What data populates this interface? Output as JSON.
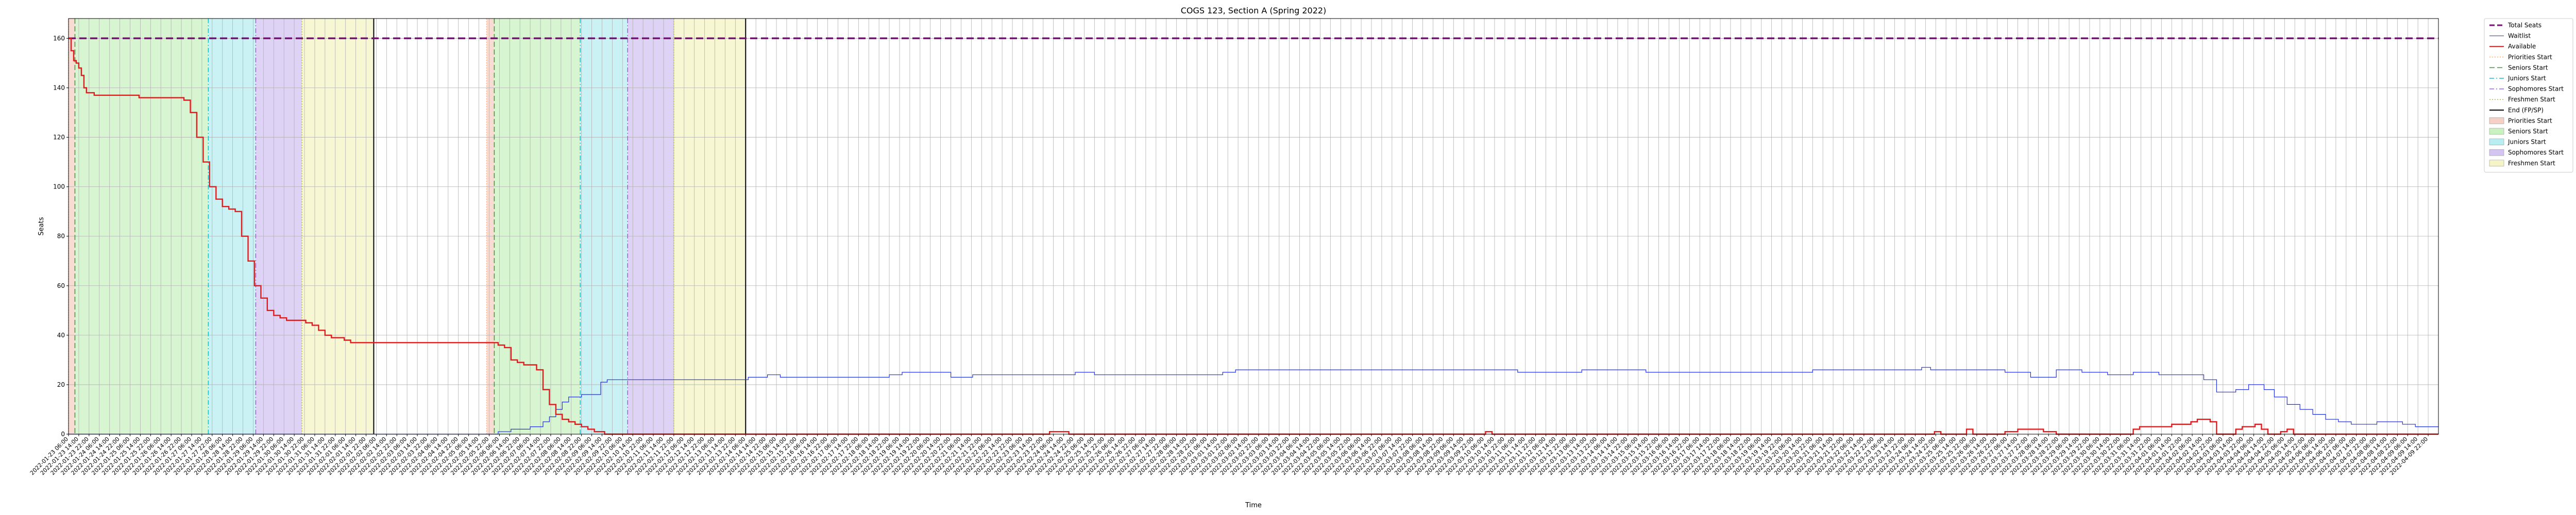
{
  "chart_data": {
    "type": "line",
    "title": "COGS 123, Section A (Spring 2022)",
    "xlabel": "Time",
    "ylabel": "Seats",
    "ylim": [
      0,
      168
    ],
    "y_ticks": [
      0,
      20,
      40,
      60,
      80,
      100,
      120,
      140,
      160
    ],
    "grid": true,
    "legend_placement": "outside-top-right",
    "x_range_hours": [
      0,
      1848
    ],
    "x_tick_first": "2022-01-23T06:00",
    "x_tick_step_hours": 8,
    "x_tick_count": 231,
    "series": [
      {
        "name": "Total Seats",
        "color": "#7b0f7a",
        "points": [
          [
            0,
            160
          ],
          [
            1848,
            160
          ]
        ]
      },
      {
        "name": "Waitlist",
        "color": "#1f2fe0",
        "points": [
          [
            0,
            0
          ],
          [
            330,
            0
          ],
          [
            335,
            1
          ],
          [
            345,
            2
          ],
          [
            360,
            3
          ],
          [
            370,
            5
          ],
          [
            375,
            7
          ],
          [
            380,
            10
          ],
          [
            385,
            13
          ],
          [
            390,
            15
          ],
          [
            400,
            16
          ],
          [
            410,
            16
          ],
          [
            415,
            21
          ],
          [
            420,
            22
          ],
          [
            426,
            22
          ],
          [
            440,
            22
          ],
          [
            490,
            22
          ],
          [
            520,
            22
          ],
          [
            530,
            23
          ],
          [
            545,
            24
          ],
          [
            555,
            23
          ],
          [
            600,
            23
          ],
          [
            620,
            23
          ],
          [
            640,
            24
          ],
          [
            650,
            25
          ],
          [
            680,
            25
          ],
          [
            688,
            23
          ],
          [
            700,
            23
          ],
          [
            705,
            24
          ],
          [
            740,
            24
          ],
          [
            780,
            24
          ],
          [
            785,
            25
          ],
          [
            795,
            25
          ],
          [
            800,
            24
          ],
          [
            830,
            24
          ],
          [
            890,
            24
          ],
          [
            900,
            25
          ],
          [
            910,
            26
          ],
          [
            960,
            26
          ],
          [
            1050,
            26
          ],
          [
            1100,
            26
          ],
          [
            1130,
            25
          ],
          [
            1160,
            25
          ],
          [
            1180,
            26
          ],
          [
            1200,
            26
          ],
          [
            1230,
            25
          ],
          [
            1280,
            25
          ],
          [
            1330,
            25
          ],
          [
            1360,
            26
          ],
          [
            1400,
            26
          ],
          [
            1440,
            26
          ],
          [
            1445,
            27
          ],
          [
            1452,
            26
          ],
          [
            1480,
            26
          ],
          [
            1510,
            25
          ],
          [
            1530,
            23
          ],
          [
            1550,
            26
          ],
          [
            1570,
            25
          ],
          [
            1590,
            24
          ],
          [
            1610,
            25
          ],
          [
            1630,
            24
          ],
          [
            1655,
            24
          ],
          [
            1665,
            22
          ],
          [
            1675,
            17
          ],
          [
            1690,
            18
          ],
          [
            1700,
            20
          ],
          [
            1712,
            18
          ],
          [
            1720,
            15
          ],
          [
            1730,
            12
          ],
          [
            1740,
            10
          ],
          [
            1750,
            8
          ],
          [
            1760,
            6
          ],
          [
            1770,
            5
          ],
          [
            1780,
            4
          ],
          [
            1800,
            5
          ],
          [
            1810,
            5
          ],
          [
            1820,
            4
          ],
          [
            1830,
            3
          ],
          [
            1848,
            3
          ]
        ]
      },
      {
        "name": "Available",
        "color": "#e31a1c",
        "points": [
          [
            0,
            160
          ],
          [
            2,
            155
          ],
          [
            4,
            151
          ],
          [
            6,
            150
          ],
          [
            8,
            148
          ],
          [
            10,
            145
          ],
          [
            12,
            140
          ],
          [
            14,
            138
          ],
          [
            20,
            137
          ],
          [
            30,
            137
          ],
          [
            40,
            137
          ],
          [
            50,
            137
          ],
          [
            55,
            136
          ],
          [
            60,
            136
          ],
          [
            70,
            136
          ],
          [
            80,
            136
          ],
          [
            90,
            135
          ],
          [
            95,
            130
          ],
          [
            100,
            120
          ],
          [
            105,
            110
          ],
          [
            110,
            100
          ],
          [
            115,
            95
          ],
          [
            120,
            92
          ],
          [
            125,
            91
          ],
          [
            130,
            90
          ],
          [
            135,
            80
          ],
          [
            140,
            70
          ],
          [
            145,
            60
          ],
          [
            150,
            55
          ],
          [
            155,
            50
          ],
          [
            160,
            48
          ],
          [
            165,
            47
          ],
          [
            170,
            46
          ],
          [
            175,
            46
          ],
          [
            180,
            46
          ],
          [
            185,
            45
          ],
          [
            190,
            44
          ],
          [
            195,
            42
          ],
          [
            200,
            40
          ],
          [
            205,
            39
          ],
          [
            210,
            39
          ],
          [
            215,
            38
          ],
          [
            220,
            37
          ],
          [
            230,
            37
          ],
          [
            250,
            37
          ],
          [
            290,
            37
          ],
          [
            330,
            37
          ],
          [
            335,
            36
          ],
          [
            340,
            35
          ],
          [
            345,
            30
          ],
          [
            350,
            29
          ],
          [
            355,
            28
          ],
          [
            360,
            28
          ],
          [
            365,
            26
          ],
          [
            370,
            18
          ],
          [
            375,
            12
          ],
          [
            380,
            8
          ],
          [
            385,
            6
          ],
          [
            390,
            5
          ],
          [
            395,
            4
          ],
          [
            400,
            3
          ],
          [
            405,
            2
          ],
          [
            410,
            1
          ],
          [
            415,
            1
          ],
          [
            418,
            0
          ],
          [
            440,
            0
          ],
          [
            520,
            0
          ],
          [
            600,
            0
          ],
          [
            760,
            0
          ],
          [
            765,
            1
          ],
          [
            775,
            1
          ],
          [
            780,
            0
          ],
          [
            1100,
            0
          ],
          [
            1105,
            1
          ],
          [
            1110,
            0
          ],
          [
            1450,
            0
          ],
          [
            1455,
            1
          ],
          [
            1460,
            0
          ],
          [
            1475,
            0
          ],
          [
            1480,
            2
          ],
          [
            1485,
            0
          ],
          [
            1500,
            0
          ],
          [
            1510,
            1
          ],
          [
            1520,
            2
          ],
          [
            1530,
            2
          ],
          [
            1540,
            1
          ],
          [
            1550,
            0
          ],
          [
            1600,
            0
          ],
          [
            1610,
            2
          ],
          [
            1615,
            3
          ],
          [
            1620,
            3
          ],
          [
            1630,
            3
          ],
          [
            1640,
            4
          ],
          [
            1650,
            4
          ],
          [
            1655,
            5
          ],
          [
            1660,
            6
          ],
          [
            1665,
            6
          ],
          [
            1670,
            5
          ],
          [
            1675,
            0
          ],
          [
            1685,
            0
          ],
          [
            1690,
            2
          ],
          [
            1695,
            3
          ],
          [
            1700,
            3
          ],
          [
            1705,
            4
          ],
          [
            1710,
            2
          ],
          [
            1715,
            0
          ],
          [
            1720,
            0
          ],
          [
            1725,
            1
          ],
          [
            1730,
            2
          ],
          [
            1735,
            0
          ],
          [
            1848,
            0
          ]
        ]
      }
    ],
    "vertical_lines": [
      {
        "name": "Priorities Start",
        "style": "dotted",
        "color": "#ffb07a",
        "x": [
          0,
          326
        ]
      },
      {
        "name": "Seniors Start",
        "style": "dashed",
        "color": "#2ca02c",
        "x": [
          5,
          332
        ]
      },
      {
        "name": "Juniors Start",
        "style": "dashdot",
        "color": "#17becf",
        "x": [
          109,
          399
        ]
      },
      {
        "name": "Sophomores Start",
        "style": "dashdot",
        "color": "#9467bd",
        "x": [
          146,
          436
        ]
      },
      {
        "name": "Freshmen Start",
        "style": "dotted",
        "color": "#bcbd22",
        "x": [
          182,
          472
        ]
      },
      {
        "name": "End (FP/SP)",
        "style": "solid",
        "color": "#000000",
        "x": [
          238,
          528
        ]
      }
    ],
    "shaded_regions": [
      {
        "name": "Priorities Start",
        "color": "#f6d0c4",
        "ranges": [
          [
            0,
            5
          ],
          [
            326,
            332
          ]
        ]
      },
      {
        "name": "Seniors Start",
        "color": "#c9f2c0",
        "ranges": [
          [
            5,
            109
          ],
          [
            332,
            399
          ]
        ]
      },
      {
        "name": "Juniors Start",
        "color": "#b8eef2",
        "ranges": [
          [
            109,
            146
          ],
          [
            399,
            436
          ]
        ]
      },
      {
        "name": "Sophomores Start",
        "color": "#d3c4f1",
        "ranges": [
          [
            146,
            182
          ],
          [
            436,
            472
          ]
        ]
      },
      {
        "name": "Freshmen Start",
        "color": "#f4f4c6",
        "ranges": [
          [
            182,
            238
          ],
          [
            472,
            528
          ]
        ]
      }
    ],
    "legend": [
      {
        "label": "Total Seats",
        "kind": "line",
        "style": "dashed",
        "color": "#7b0f7a",
        "width": 3
      },
      {
        "label": "Waitlist",
        "kind": "line",
        "style": "solid",
        "color": "#1f2fe0",
        "width": 1
      },
      {
        "label": "Available",
        "kind": "line",
        "style": "solid",
        "color": "#e31a1c",
        "width": 2
      },
      {
        "label": "Priorities Start",
        "kind": "line",
        "style": "dotted",
        "color": "#ffb07a",
        "width": 1.5
      },
      {
        "label": "Seniors Start",
        "kind": "line",
        "style": "dashed",
        "color": "#2ca02c",
        "width": 1.5
      },
      {
        "label": "Juniors Start",
        "kind": "line",
        "style": "dashdot",
        "color": "#17becf",
        "width": 1.5
      },
      {
        "label": "Sophomores Start",
        "kind": "line",
        "style": "dashdot",
        "color": "#9467bd",
        "width": 1.5
      },
      {
        "label": "Freshmen Start",
        "kind": "line",
        "style": "dotted",
        "color": "#bcbd22",
        "width": 1.5
      },
      {
        "label": "End (FP/SP)",
        "kind": "line",
        "style": "solid",
        "color": "#000000",
        "width": 2
      },
      {
        "label": "Priorities Start",
        "kind": "patch",
        "color": "#f6d0c4"
      },
      {
        "label": "Seniors Start",
        "kind": "patch",
        "color": "#c9f2c0"
      },
      {
        "label": "Juniors Start",
        "kind": "patch",
        "color": "#b8eef2"
      },
      {
        "label": "Sophomores Start",
        "kind": "patch",
        "color": "#d3c4f1"
      },
      {
        "label": "Freshmen Start",
        "kind": "patch",
        "color": "#f4f4c6"
      }
    ]
  }
}
